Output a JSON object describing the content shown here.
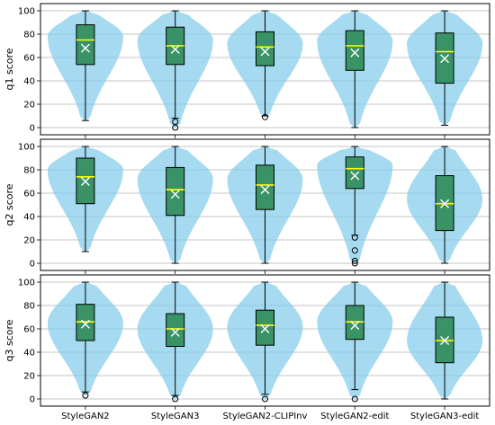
{
  "chart_data": {
    "type": "violin+box",
    "categories": [
      "StyleGAN2",
      "StyleGAN3",
      "StyleGAN2-CLIPInv",
      "StyleGAN2-edit",
      "StyleGAN3-edit"
    ],
    "ylim": [
      0,
      100
    ],
    "yticks": [
      "0",
      "20",
      "40",
      "60",
      "80",
      "100"
    ],
    "grid": "horizontal",
    "colors": {
      "violin": "#87ceeb",
      "box": "#2e8b57",
      "median": "#ffff00",
      "mean_marker": "#ffffff",
      "grid": "#b0b0b0"
    },
    "panels": [
      {
        "ylabel": "q1 score",
        "series": [
          {
            "q1": 54,
            "median": 75,
            "q3": 88,
            "whisker_low": 6,
            "whisker_high": 100,
            "mean": 68,
            "outliers": [],
            "violin_range": [
              6,
              100
            ],
            "violin_peak": 78
          },
          {
            "q1": 54,
            "median": 70,
            "q3": 86,
            "whisker_low": 8,
            "whisker_high": 100,
            "mean": 67,
            "outliers": [
              5,
              0
            ],
            "violin_range": [
              0,
              100
            ],
            "violin_peak": 75
          },
          {
            "q1": 53,
            "median": 69,
            "q3": 82,
            "whisker_low": 10,
            "whisker_high": 100,
            "mean": 65,
            "outliers": [
              9
            ],
            "violin_range": [
              9,
              100
            ],
            "violin_peak": 72
          },
          {
            "q1": 49,
            "median": 70,
            "q3": 83,
            "whisker_low": 0,
            "whisker_high": 100,
            "mean": 64,
            "outliers": [],
            "violin_range": [
              0,
              100
            ],
            "violin_peak": 74
          },
          {
            "q1": 38,
            "median": 65,
            "q3": 81,
            "whisker_low": 2,
            "whisker_high": 100,
            "mean": 59,
            "outliers": [],
            "violin_range": [
              2,
              100
            ],
            "violin_peak": 72
          }
        ]
      },
      {
        "ylabel": "q2 score",
        "series": [
          {
            "q1": 51,
            "median": 74,
            "q3": 90,
            "whisker_low": 10,
            "whisker_high": 100,
            "mean": 70,
            "outliers": [],
            "violin_range": [
              10,
              100
            ],
            "violin_peak": 80
          },
          {
            "q1": 41,
            "median": 63,
            "q3": 82,
            "whisker_low": 0,
            "whisker_high": 100,
            "mean": 59,
            "outliers": [],
            "violin_range": [
              0,
              100
            ],
            "violin_peak": 72
          },
          {
            "q1": 46,
            "median": 67,
            "q3": 84,
            "whisker_low": 0,
            "whisker_high": 100,
            "mean": 63,
            "outliers": [],
            "violin_range": [
              0,
              100
            ],
            "violin_peak": 72
          },
          {
            "q1": 64,
            "median": 81,
            "q3": 91,
            "whisker_low": 24,
            "whisker_high": 100,
            "mean": 75,
            "outliers": [
              22,
              11,
              2,
              0
            ],
            "violin_range": [
              0,
              100
            ],
            "violin_peak": 84
          },
          {
            "q1": 28,
            "median": 51,
            "q3": 75,
            "whisker_low": 0,
            "whisker_high": 100,
            "mean": 51,
            "outliers": [],
            "violin_range": [
              0,
              100
            ],
            "violin_peak": 55
          }
        ]
      },
      {
        "ylabel": "q3 score",
        "series": [
          {
            "q1": 50,
            "median": 66,
            "q3": 81,
            "whisker_low": 6,
            "whisker_high": 100,
            "mean": 64,
            "outliers": [
              3
            ],
            "violin_range": [
              3,
              100
            ],
            "violin_peak": 65
          },
          {
            "q1": 45,
            "median": 60,
            "q3": 73,
            "whisker_low": 3,
            "whisker_high": 100,
            "mean": 57,
            "outliers": [
              0
            ],
            "violin_range": [
              0,
              100
            ],
            "violin_peak": 60
          },
          {
            "q1": 46,
            "median": 63,
            "q3": 76,
            "whisker_low": 4,
            "whisker_high": 100,
            "mean": 60,
            "outliers": [
              0
            ],
            "violin_range": [
              0,
              100
            ],
            "violin_peak": 62
          },
          {
            "q1": 51,
            "median": 66,
            "q3": 80,
            "whisker_low": 8,
            "whisker_high": 100,
            "mean": 63,
            "outliers": [
              0
            ],
            "violin_range": [
              0,
              100
            ],
            "violin_peak": 66
          },
          {
            "q1": 31,
            "median": 50,
            "q3": 70,
            "whisker_low": 0,
            "whisker_high": 100,
            "mean": 50,
            "outliers": [],
            "violin_range": [
              0,
              100
            ],
            "violin_peak": 50
          }
        ]
      }
    ]
  }
}
